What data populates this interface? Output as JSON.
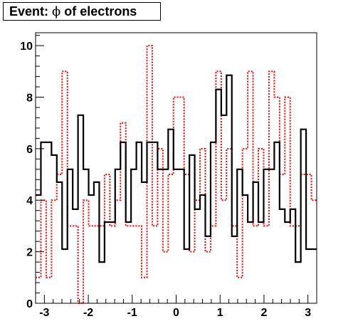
{
  "title": {
    "prefix": "Event: ",
    "symbol": "ϕ",
    "suffix": " of electrons"
  },
  "chart_data": {
    "type": "histogram",
    "title": "Event: ϕ of electrons",
    "xlabel": "",
    "ylabel": "",
    "xlim": [
      -3.2,
      3.2
    ],
    "ylim": [
      0,
      10.5
    ],
    "x_ticks": [
      "-3",
      "-2",
      "-1",
      "0",
      "1",
      "2",
      "3"
    ],
    "x_tick_values": [
      -3,
      -2,
      -1,
      0,
      1,
      2,
      3
    ],
    "y_ticks": [
      "0",
      "2",
      "4",
      "6",
      "8",
      "10"
    ],
    "y_tick_values": [
      0,
      2,
      4,
      6,
      8,
      10
    ],
    "bin_width": 0.1,
    "grid": false,
    "legend": "none",
    "series": [
      {
        "style": "solid",
        "color": "#000000",
        "values": [
          4.2,
          6.25,
          6.25,
          5.75,
          4.7,
          2.1,
          5.2,
          3.65,
          7.3,
          5.2,
          4.2,
          4.7,
          1.6,
          3.15,
          3.15,
          5.2,
          6.25,
          3.15,
          5.2,
          6.25,
          4.7,
          6.25,
          6.25,
          5.2,
          5.2,
          6.75,
          5.2,
          5.2,
          2.1,
          5.75,
          3.65,
          4.2,
          2.6,
          6.25,
          8.3,
          7.3,
          8.85,
          2.6,
          5.2,
          4.2,
          3.15,
          4.7,
          3.15,
          5.2,
          5.2,
          6.25,
          3.65,
          3.15,
          3.65,
          1.6,
          6.75,
          2.1,
          2.1
        ]
      },
      {
        "style": "dotted",
        "color": "#ff0000",
        "values": [
          1.0,
          4.0,
          1.0,
          4.0,
          5.0,
          9.0,
          3.0,
          3.0,
          0.0,
          4.0,
          3.0,
          3.0,
          3.0,
          5.0,
          3.0,
          4.0,
          7.0,
          3.0,
          3.0,
          3.0,
          1.0,
          10.0,
          3.0,
          6.0,
          2.0,
          5.0,
          8.0,
          8.0,
          5.0,
          2.0,
          4.0,
          6.0,
          2.0,
          3.0,
          9.0,
          4.0,
          6.0,
          3.0,
          1.0,
          6.0,
          9.0,
          3.0,
          6.0,
          3.0,
          9.0,
          8.0,
          5.0,
          8.0,
          3.0,
          3.0,
          5.0,
          5.0,
          4.0
        ]
      }
    ]
  }
}
